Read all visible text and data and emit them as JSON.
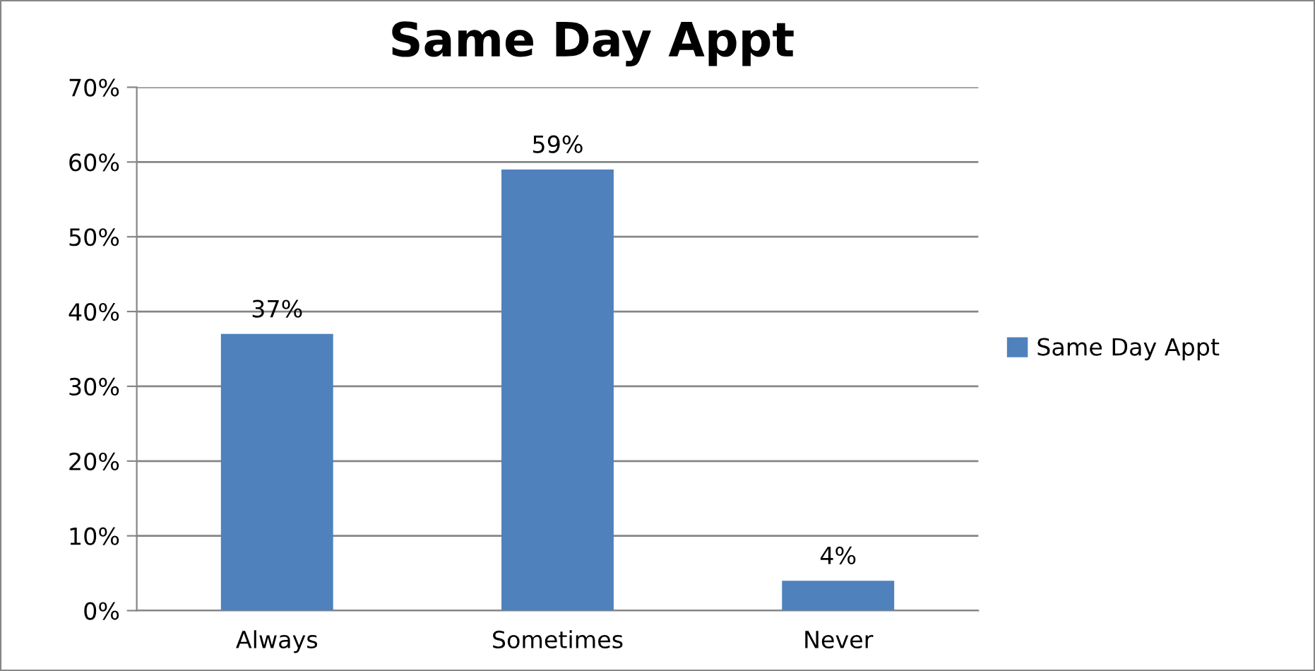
{
  "chart_data": {
    "type": "bar",
    "title": "Same Day Appt",
    "categories": [
      "Always",
      "Sometimes",
      "Never"
    ],
    "series": [
      {
        "name": "Same Day Appt",
        "color": "#4f81bd",
        "values": [
          37,
          59,
          4
        ],
        "value_labels": [
          "37%",
          "59%",
          "4%"
        ]
      }
    ],
    "ylim": [
      0,
      70
    ],
    "yticks": [
      {
        "value": 0,
        "label": "0%"
      },
      {
        "value": 10,
        "label": "10%"
      },
      {
        "value": 20,
        "label": "20%"
      },
      {
        "value": 30,
        "label": "30%"
      },
      {
        "value": 40,
        "label": "40%"
      },
      {
        "value": 50,
        "label": "50%"
      },
      {
        "value": 60,
        "label": "60%"
      },
      {
        "value": 70,
        "label": "70%"
      }
    ],
    "grid": "y",
    "legend": "right"
  }
}
